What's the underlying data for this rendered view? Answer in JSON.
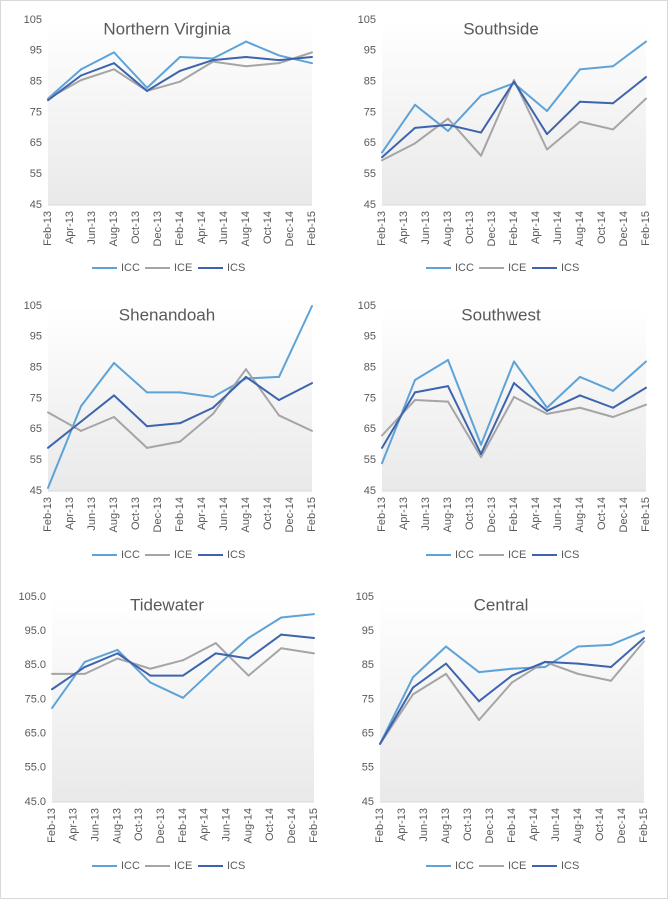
{
  "chart_data": [
    {
      "type": "line",
      "title": "Northern Virginia",
      "categories": [
        "Feb-13",
        null,
        "Apr-13",
        null,
        "Jun-13",
        null,
        "Aug-13",
        null,
        "Oct-13",
        null,
        "Dec-13",
        null,
        "Feb-14",
        null,
        "Apr-14",
        null,
        "Jun-14",
        null,
        "Aug-14",
        null,
        "Oct-14",
        null,
        "Dec-14",
        null,
        "Feb-15"
      ],
      "series": [
        {
          "name": "ICC",
          "color": "#5ea3d8",
          "values": [
            79.5,
            null,
            null,
            89,
            null,
            null,
            94.5,
            null,
            null,
            83,
            null,
            null,
            93,
            null,
            null,
            92.5,
            null,
            null,
            98,
            null,
            null,
            93.5,
            null,
            null,
            91
          ]
        },
        {
          "name": "ICE",
          "color": "#a5a5a5",
          "values": [
            79.5,
            null,
            null,
            85.5,
            null,
            null,
            89,
            null,
            null,
            82,
            null,
            null,
            85,
            null,
            null,
            91.5,
            null,
            null,
            90,
            null,
            null,
            91,
            null,
            null,
            94.5
          ]
        },
        {
          "name": "ICS",
          "color": "#3d64ad",
          "values": [
            79,
            null,
            null,
            87,
            null,
            null,
            91,
            null,
            null,
            82,
            null,
            null,
            88.5,
            null,
            null,
            92,
            null,
            null,
            93,
            null,
            null,
            92,
            null,
            null,
            93
          ]
        }
      ],
      "ylim": [
        45,
        105
      ],
      "yticks": [
        45,
        55,
        65,
        75,
        85,
        95,
        105
      ]
    },
    {
      "type": "line",
      "title": "Southside",
      "categories": [
        "Feb-13",
        null,
        "Apr-13",
        null,
        "Jun-13",
        null,
        "Aug-13",
        null,
        "Oct-13",
        null,
        "Dec-13",
        null,
        "Feb-14",
        null,
        "Apr-14",
        null,
        "Jun-14",
        null,
        "Aug-14",
        null,
        "Oct-14",
        null,
        "Dec-14",
        null,
        "Feb-15"
      ],
      "series": [
        {
          "name": "ICC",
          "color": "#5ea3d8",
          "values": [
            62,
            null,
            null,
            77.5,
            null,
            null,
            69,
            null,
            null,
            80.5,
            null,
            null,
            84.5,
            null,
            null,
            75.5,
            null,
            null,
            89,
            null,
            null,
            90,
            null,
            null,
            98
          ]
        },
        {
          "name": "ICE",
          "color": "#a5a5a5",
          "values": [
            59.5,
            null,
            null,
            65,
            null,
            null,
            73,
            null,
            null,
            61,
            null,
            null,
            85.5,
            null,
            null,
            63,
            null,
            null,
            72,
            null,
            null,
            69.5,
            null,
            null,
            79.5
          ]
        },
        {
          "name": "ICS",
          "color": "#3d64ad",
          "values": [
            60.5,
            null,
            null,
            70,
            null,
            null,
            71,
            null,
            null,
            68.5,
            null,
            null,
            85,
            null,
            null,
            68,
            null,
            null,
            78.5,
            null,
            null,
            78,
            null,
            null,
            86.5
          ]
        }
      ],
      "ylim": [
        45,
        105
      ],
      "yticks": [
        45,
        55,
        65,
        75,
        85,
        95,
        105
      ]
    },
    {
      "type": "line",
      "title": "Shenandoah",
      "categories": [
        "Feb-13",
        null,
        "Apr-13",
        null,
        "Jun-13",
        null,
        "Aug-13",
        null,
        "Oct-13",
        null,
        "Dec-13",
        null,
        "Feb-14",
        null,
        "Apr-14",
        null,
        "Jun-14",
        null,
        "Aug-14",
        null,
        "Oct-14",
        null,
        "Dec-14",
        null,
        "Feb-15"
      ],
      "series": [
        {
          "name": "ICC",
          "color": "#5ea3d8",
          "values": [
            46,
            null,
            null,
            72.5,
            null,
            null,
            86.5,
            null,
            null,
            77,
            null,
            null,
            77,
            null,
            null,
            75.5,
            null,
            null,
            81.5,
            null,
            null,
            82,
            null,
            null,
            105
          ]
        },
        {
          "name": "ICE",
          "color": "#a5a5a5",
          "values": [
            70.5,
            null,
            null,
            64.5,
            null,
            null,
            69,
            null,
            null,
            59,
            null,
            null,
            61,
            null,
            null,
            70,
            null,
            null,
            84.5,
            null,
            null,
            69.5,
            null,
            null,
            64.5
          ]
        },
        {
          "name": "ICS",
          "color": "#3d64ad",
          "values": [
            59,
            null,
            null,
            67.5,
            null,
            null,
            76,
            null,
            null,
            66,
            null,
            null,
            67,
            null,
            null,
            72,
            null,
            null,
            82,
            null,
            null,
            74.5,
            null,
            null,
            80
          ]
        }
      ],
      "ylim": [
        45,
        105
      ],
      "yticks": [
        45,
        55,
        65,
        75,
        85,
        95,
        105
      ]
    },
    {
      "type": "line",
      "title": "Southwest",
      "categories": [
        "Feb-13",
        null,
        "Apr-13",
        null,
        "Jun-13",
        null,
        "Aug-13",
        null,
        "Oct-13",
        null,
        "Dec-13",
        null,
        "Feb-14",
        null,
        "Apr-14",
        null,
        "Jun-14",
        null,
        "Aug-14",
        null,
        "Oct-14",
        null,
        "Dec-14",
        null,
        "Feb-15"
      ],
      "series": [
        {
          "name": "ICC",
          "color": "#5ea3d8",
          "values": [
            54,
            null,
            null,
            81,
            null,
            null,
            87.5,
            null,
            null,
            60,
            null,
            null,
            87,
            null,
            null,
            72,
            null,
            null,
            82,
            null,
            null,
            77.5,
            null,
            null,
            87
          ]
        },
        {
          "name": "ICE",
          "color": "#a5a5a5",
          "values": [
            63,
            null,
            null,
            74.5,
            null,
            null,
            74,
            null,
            null,
            56,
            null,
            null,
            75.5,
            null,
            null,
            70,
            null,
            null,
            72,
            null,
            null,
            69,
            null,
            null,
            73
          ]
        },
        {
          "name": "ICS",
          "color": "#3d64ad",
          "values": [
            59,
            null,
            null,
            77,
            null,
            null,
            79,
            null,
            null,
            57,
            null,
            null,
            80,
            null,
            null,
            71,
            null,
            null,
            76,
            null,
            null,
            72,
            null,
            null,
            78.5
          ]
        }
      ],
      "ylim": [
        45,
        105
      ],
      "yticks": [
        45,
        55,
        65,
        75,
        85,
        95,
        105
      ]
    },
    {
      "type": "line",
      "title": "Tidewater",
      "categories": [
        "Feb-13",
        null,
        "Apr-13",
        null,
        "Jun-13",
        null,
        "Aug-13",
        null,
        "Oct-13",
        null,
        "Dec-13",
        null,
        "Feb-14",
        null,
        "Apr-14",
        null,
        "Jun-14",
        null,
        "Aug-14",
        null,
        "Oct-14",
        null,
        "Dec-14",
        null,
        "Feb-15"
      ],
      "series": [
        {
          "name": "ICC",
          "color": "#5ea3d8",
          "values": [
            72.5,
            null,
            null,
            86,
            null,
            null,
            89.5,
            null,
            null,
            80,
            null,
            null,
            75.5,
            null,
            null,
            84.5,
            null,
            null,
            93,
            null,
            null,
            99,
            null,
            null,
            100
          ]
        },
        {
          "name": "ICE",
          "color": "#a5a5a5",
          "values": [
            82.5,
            null,
            null,
            82.5,
            null,
            null,
            87,
            null,
            null,
            84,
            null,
            null,
            86.5,
            null,
            null,
            91.5,
            null,
            null,
            82,
            null,
            null,
            90,
            null,
            null,
            88.5
          ]
        },
        {
          "name": "ICS",
          "color": "#3d64ad",
          "values": [
            78,
            null,
            null,
            84.5,
            null,
            null,
            88.5,
            null,
            null,
            82,
            null,
            null,
            82,
            null,
            null,
            88.5,
            null,
            null,
            87,
            null,
            null,
            94,
            null,
            null,
            93
          ]
        }
      ],
      "ylim": [
        45,
        105
      ],
      "yticks": [
        {
          "value": 45,
          "label": "45.0"
        },
        {
          "value": 55,
          "label": "55.0"
        },
        {
          "value": 65,
          "label": "65.0"
        },
        {
          "value": 75,
          "label": "75.0"
        },
        {
          "value": 85,
          "label": "85.0"
        },
        {
          "value": 95,
          "label": "95.0"
        },
        {
          "value": 105,
          "label": "105.0"
        }
      ]
    },
    {
      "type": "line",
      "title": "Central",
      "categories": [
        "Feb-13",
        null,
        "Apr-13",
        null,
        "Jun-13",
        null,
        "Aug-13",
        null,
        "Oct-13",
        null,
        "Dec-13",
        null,
        "Feb-14",
        null,
        "Apr-14",
        null,
        "Jun-14",
        null,
        "Aug-14",
        null,
        "Oct-14",
        null,
        "Dec-14",
        null,
        "Feb-15"
      ],
      "series": [
        {
          "name": "ICC",
          "color": "#5ea3d8",
          "values": [
            62,
            null,
            null,
            81.5,
            null,
            null,
            90.5,
            null,
            null,
            83,
            null,
            null,
            84,
            null,
            null,
            84.5,
            null,
            null,
            90.5,
            null,
            null,
            91,
            null,
            null,
            95
          ]
        },
        {
          "name": "ICE",
          "color": "#a5a5a5",
          "values": [
            62,
            null,
            null,
            76.5,
            null,
            null,
            82.5,
            null,
            null,
            69,
            null,
            null,
            80,
            null,
            null,
            86,
            null,
            null,
            82.5,
            null,
            null,
            80.5,
            null,
            null,
            92
          ]
        },
        {
          "name": "ICS",
          "color": "#3d64ad",
          "values": [
            62,
            null,
            null,
            78.5,
            null,
            null,
            85.5,
            null,
            null,
            74.5,
            null,
            null,
            82,
            null,
            null,
            86,
            null,
            null,
            85.5,
            null,
            null,
            84.5,
            null,
            null,
            93
          ]
        }
      ],
      "ylim": [
        45,
        105
      ],
      "yticks": [
        45,
        55,
        65,
        75,
        85,
        95,
        105
      ]
    }
  ]
}
